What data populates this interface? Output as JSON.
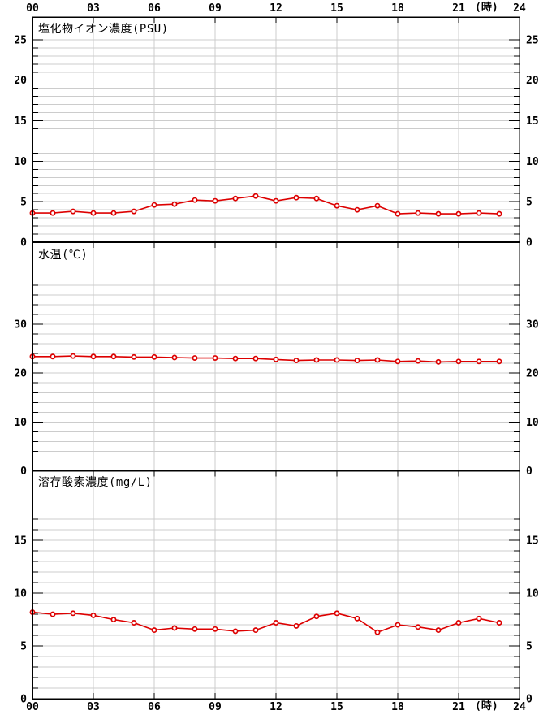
{
  "colors": {
    "line": "#dd0000",
    "marker_fill": "#ffffff",
    "grid": "#cccccc",
    "axis": "#000000",
    "background": "#ffffff"
  },
  "time_axis": {
    "min": 0,
    "max": 24,
    "tick_hours": [
      0,
      3,
      6,
      9,
      12,
      15,
      18,
      21,
      24
    ],
    "tick_labels": [
      "00",
      "03",
      "06",
      "09",
      "12",
      "15",
      "18",
      "21",
      "24"
    ],
    "unit_label": "(時)",
    "x_hours": [
      0,
      1,
      2,
      3,
      4,
      5,
      6,
      7,
      8,
      9,
      10,
      11,
      12,
      13,
      14,
      15,
      16,
      17,
      18,
      19,
      20,
      21,
      22,
      23
    ]
  },
  "chart_data": [
    {
      "type": "line",
      "title": "塩化物イオン濃度(PSU)",
      "unit": "PSU",
      "values": [
        3.6,
        3.6,
        3.8,
        3.6,
        3.6,
        3.8,
        4.6,
        4.7,
        5.2,
        5.1,
        5.4,
        5.7,
        5.1,
        5.5,
        5.4,
        4.5,
        4.0,
        4.5,
        3.5,
        3.6,
        3.5,
        3.5,
        3.6,
        3.5
      ],
      "ylim": [
        0,
        27.8
      ],
      "ytick_major": [
        0,
        5,
        10,
        15,
        20,
        25
      ],
      "grid_step": 1,
      "grid_max": 25,
      "legend": "none",
      "grid": "on"
    },
    {
      "type": "line",
      "title": "水温(℃)",
      "unit": "℃",
      "values": [
        23.4,
        23.4,
        23.5,
        23.4,
        23.4,
        23.3,
        23.3,
        23.2,
        23.1,
        23.1,
        23.0,
        23.0,
        22.8,
        22.6,
        22.7,
        22.7,
        22.6,
        22.7,
        22.4,
        22.5,
        22.3,
        22.4,
        22.4,
        22.4
      ],
      "ylim": [
        0,
        46.8
      ],
      "ytick_major": [
        0,
        10,
        20,
        30
      ],
      "grid_step": 2,
      "grid_max": 38,
      "legend": "none",
      "grid": "on"
    },
    {
      "type": "line",
      "title": "溶存酸素濃度(mg/L)",
      "unit": "mg/L",
      "values": [
        8.2,
        8.0,
        8.1,
        7.9,
        7.5,
        7.2,
        6.5,
        6.7,
        6.6,
        6.6,
        6.4,
        6.5,
        7.2,
        6.9,
        7.8,
        8.1,
        7.6,
        6.3,
        7.0,
        6.8,
        6.5,
        7.2,
        7.6,
        7.2
      ],
      "ylim": [
        0,
        21.6
      ],
      "ytick_major": [
        0,
        5,
        10,
        15
      ],
      "grid_step": 1,
      "grid_max": 18,
      "legend": "none",
      "grid": "on"
    }
  ]
}
